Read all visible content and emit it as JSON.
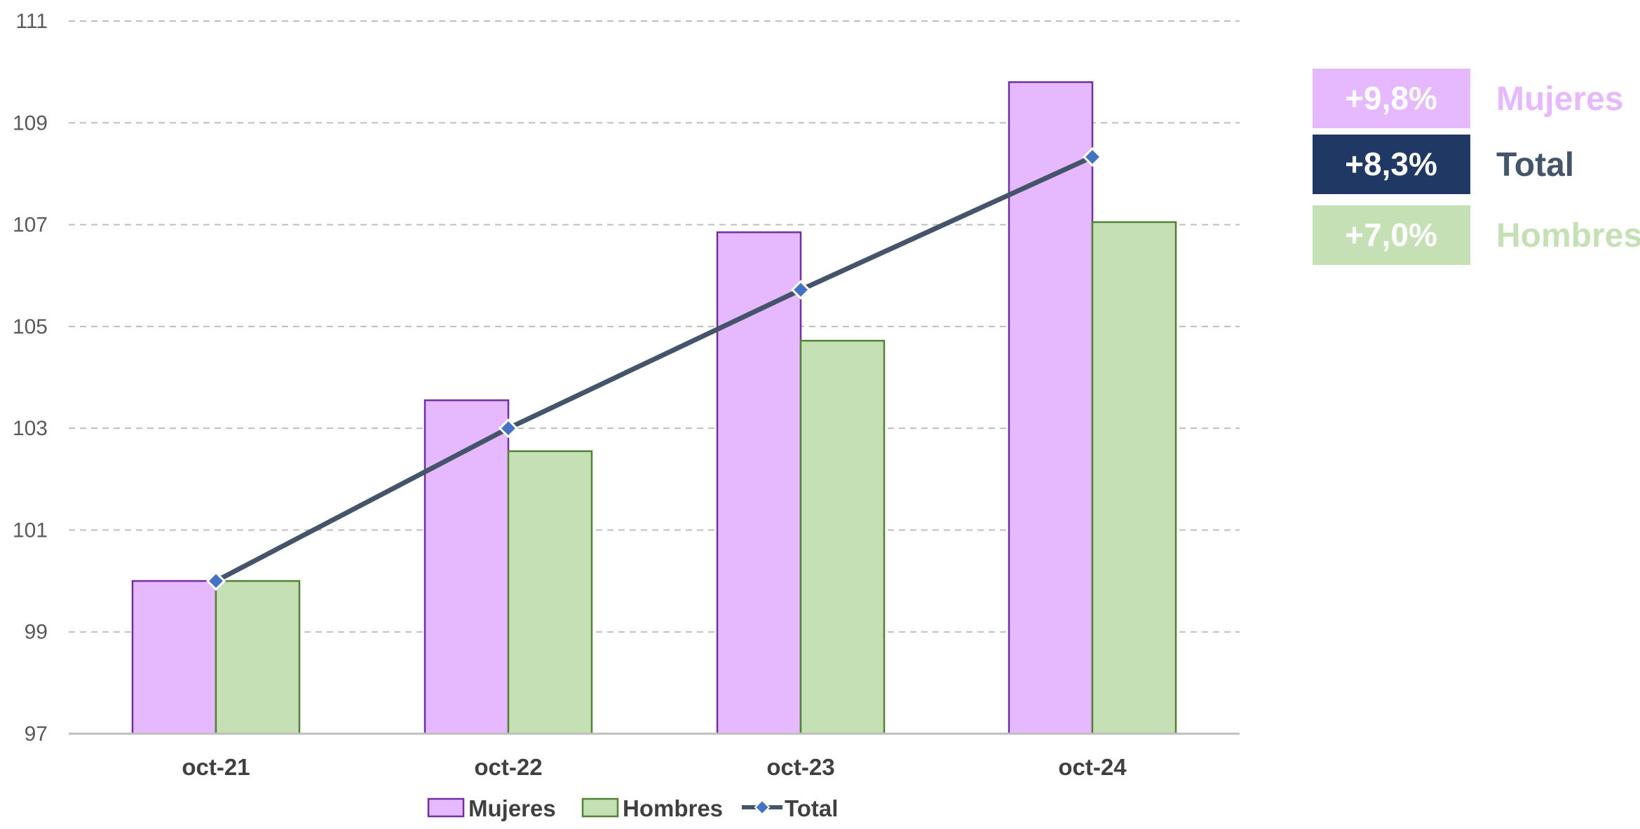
{
  "colors": {
    "mujeres_fill": "#E6B9FF",
    "mujeres_stroke": "#7030A0",
    "hombres_fill": "#C5E0B4",
    "hombres_stroke": "#548235",
    "total_line": "#44546A",
    "total_marker": "#4472C4",
    "grid": "#BFBFBF",
    "axis": "#BFBFBF"
  },
  "chart_data": {
    "type": "bar",
    "categories": [
      "oct-21",
      "oct-22",
      "oct-23",
      "oct-24"
    ],
    "series": [
      {
        "name": "Mujeres",
        "type": "bar",
        "values": [
          100.0,
          103.55,
          106.85,
          109.8
        ]
      },
      {
        "name": "Hombres",
        "type": "bar",
        "values": [
          100.0,
          102.55,
          104.72,
          107.05
        ]
      },
      {
        "name": "Total",
        "type": "line",
        "values": [
          100.0,
          103.0,
          105.72,
          108.33
        ]
      }
    ],
    "ylim": [
      97,
      111
    ],
    "yticks": [
      "97",
      "99",
      "101",
      "103",
      "105",
      "107",
      "109",
      "111"
    ],
    "grid": true,
    "legend": {
      "position": "bottom",
      "entries": [
        "Mujeres",
        "Hombres",
        "Total"
      ]
    },
    "summary_boxes": [
      {
        "value": "+9,8%",
        "name": "Mujeres",
        "color": "#E6B9FF",
        "text_color": "#E6B9FF"
      },
      {
        "value": "+8,3%",
        "name": "Total",
        "color": "#203864",
        "text_color": "#44546A"
      },
      {
        "value": "+7,0%",
        "name": "Hombres",
        "color": "#C5E0B4",
        "text_color": "#C5E0B4"
      }
    ]
  }
}
